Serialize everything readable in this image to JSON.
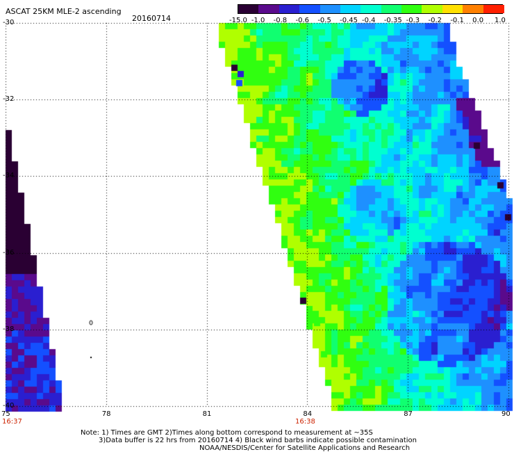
{
  "header": {
    "title": "ASCAT 25KM MLE-2 ascending",
    "date": "20160714"
  },
  "colorbar": {
    "labels": [
      "-15.0",
      "-1.0",
      "-0.8",
      "-0.6",
      "-0.5",
      "-0.45",
      "-0.4",
      "-0.35",
      "-0.3",
      "-0.2",
      "-0.1",
      "0.0",
      "1.0"
    ],
    "colors": [
      "#2a0033",
      "#5a0a8c",
      "#2a1fd0",
      "#1450ff",
      "#1e90ff",
      "#00d4ff",
      "#00ffd0",
      "#10ff70",
      "#30ff10",
      "#b0ff00",
      "#ffe000",
      "#ff8000",
      "#ff2000"
    ]
  },
  "map": {
    "x_ticks": [
      "75",
      "78",
      "81",
      "84",
      "87",
      "90"
    ],
    "y_ticks": [
      "-30",
      "-32",
      "-34",
      "-36",
      "-38",
      "-40"
    ],
    "lon_range": [
      75,
      90
    ],
    "lat_range": [
      -40,
      -30
    ],
    "swath_times": [
      "16:37",
      "16:38"
    ]
  },
  "footer": {
    "line1": "Note: 1) Times are GMT 2)Times along bottom correspond to measurement at ~35S",
    "line2": "3)Data buffer is 22 hrs from 20160714 4) Black wind barbs indicate possible contamination",
    "line3": "NOAA/NESDIS/Center for Satellite Applications and Research"
  }
}
